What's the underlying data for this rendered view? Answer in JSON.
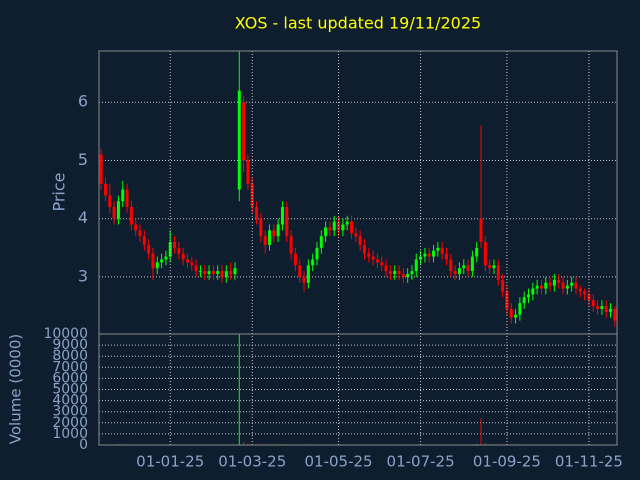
{
  "chart_data": [
    {
      "type": "candlestick",
      "title": "XOS - last updated 19/11/2025",
      "y_label": "Price",
      "ylim": [
        2.02,
        6.88
      ],
      "yticks": [
        3,
        4,
        5,
        6
      ],
      "grid": true,
      "up_color": "#00ff00",
      "down_color": "#ff0000",
      "open": [
        5.1,
        4.6,
        4.4,
        4.2,
        4.0,
        4.3,
        4.5,
        4.2,
        3.9,
        3.8,
        3.7,
        3.55,
        3.4,
        3.15,
        3.25,
        3.3,
        3.35,
        3.6,
        3.5,
        3.4,
        3.3,
        3.25,
        3.2,
        3.1,
        3.1,
        3.05,
        3.1,
        3.05,
        3.1,
        3.0,
        3.1,
        3.05,
        4.5,
        6.0,
        5.0,
        4.6,
        4.2,
        4.0,
        3.7,
        3.55,
        3.8,
        3.7,
        3.9,
        4.2,
        3.7,
        3.4,
        3.2,
        3.0,
        2.9,
        3.2,
        3.3,
        3.5,
        3.7,
        3.85,
        3.8,
        3.95,
        3.8,
        3.9,
        3.95,
        3.75,
        3.7,
        3.55,
        3.4,
        3.35,
        3.3,
        3.25,
        3.2,
        3.1,
        3.05,
        3.1,
        3.05,
        3.0,
        3.05,
        3.1,
        3.3,
        3.35,
        3.4,
        3.35,
        3.45,
        3.5,
        3.4,
        3.3,
        3.1,
        3.05,
        3.15,
        3.2,
        3.1,
        3.35,
        4.0,
        3.6,
        3.2,
        3.15,
        3.2,
        2.95,
        2.75,
        2.45,
        2.3,
        2.35,
        2.55,
        2.65,
        2.7,
        2.8,
        2.85,
        2.8,
        2.9,
        2.85,
        2.95,
        2.9,
        2.8,
        2.85,
        2.9,
        2.8,
        2.75,
        2.7,
        2.6,
        2.5,
        2.45,
        2.5,
        2.4,
        2.45
      ],
      "high": [
        5.2,
        4.7,
        4.6,
        4.3,
        4.4,
        4.65,
        4.6,
        4.3,
        4.0,
        3.9,
        3.8,
        3.65,
        3.5,
        3.35,
        3.4,
        3.45,
        3.8,
        3.7,
        3.6,
        3.5,
        3.4,
        3.35,
        3.3,
        3.2,
        3.2,
        3.2,
        3.2,
        3.2,
        3.2,
        3.2,
        3.25,
        3.25,
        6.87,
        6.1,
        5.1,
        4.7,
        4.3,
        4.1,
        3.8,
        3.9,
        3.9,
        4.0,
        4.3,
        4.3,
        3.8,
        3.5,
        3.3,
        3.1,
        3.3,
        3.4,
        3.6,
        3.8,
        3.95,
        3.95,
        4.05,
        4.05,
        4.0,
        4.05,
        4.05,
        3.85,
        3.8,
        3.65,
        3.5,
        3.45,
        3.4,
        3.35,
        3.3,
        3.2,
        3.2,
        3.2,
        3.15,
        3.15,
        3.2,
        3.4,
        3.45,
        3.5,
        3.5,
        3.55,
        3.6,
        3.6,
        3.5,
        3.4,
        3.2,
        3.25,
        3.3,
        3.3,
        3.45,
        3.6,
        5.6,
        3.7,
        3.3,
        3.3,
        3.3,
        3.05,
        2.85,
        2.55,
        2.45,
        2.65,
        2.75,
        2.8,
        2.9,
        2.95,
        2.95,
        3.0,
        3.0,
        3.05,
        3.05,
        3.0,
        2.95,
        3.0,
        3.0,
        2.85,
        2.8,
        2.8,
        2.7,
        2.6,
        2.6,
        2.6,
        2.55,
        2.5
      ],
      "low": [
        4.5,
        4.3,
        4.1,
        3.9,
        3.9,
        4.2,
        4.1,
        3.8,
        3.7,
        3.6,
        3.45,
        3.3,
        2.95,
        3.05,
        3.15,
        3.2,
        3.25,
        3.4,
        3.3,
        3.2,
        3.15,
        3.1,
        3.0,
        3.0,
        2.95,
        2.95,
        2.95,
        2.95,
        2.9,
        2.9,
        2.95,
        2.95,
        4.3,
        4.8,
        4.5,
        4.1,
        3.9,
        3.6,
        3.4,
        3.45,
        3.6,
        3.6,
        3.8,
        3.6,
        3.3,
        3.1,
        2.9,
        2.75,
        2.8,
        3.1,
        3.2,
        3.4,
        3.6,
        3.7,
        3.7,
        3.7,
        3.7,
        3.8,
        3.65,
        3.6,
        3.45,
        3.3,
        3.25,
        3.2,
        3.15,
        3.1,
        3.0,
        2.95,
        2.95,
        2.95,
        2.9,
        2.9,
        2.95,
        3.0,
        3.2,
        3.25,
        3.25,
        3.25,
        3.35,
        3.3,
        3.2,
        3.0,
        2.95,
        2.95,
        3.05,
        3.0,
        3.0,
        3.25,
        3.5,
        3.1,
        3.05,
        3.05,
        2.85,
        2.65,
        2.35,
        2.2,
        2.2,
        2.25,
        2.45,
        2.55,
        2.6,
        2.7,
        2.7,
        2.7,
        2.75,
        2.75,
        2.8,
        2.7,
        2.7,
        2.75,
        2.7,
        2.65,
        2.6,
        2.5,
        2.4,
        2.35,
        2.35,
        2.3,
        2.3,
        2.15
      ],
      "close": [
        4.6,
        4.4,
        4.2,
        4.0,
        4.3,
        4.5,
        4.2,
        3.9,
        3.8,
        3.7,
        3.55,
        3.4,
        3.15,
        3.25,
        3.3,
        3.35,
        3.6,
        3.5,
        3.4,
        3.3,
        3.25,
        3.2,
        3.1,
        3.1,
        3.05,
        3.1,
        3.05,
        3.1,
        3.0,
        3.1,
        3.05,
        3.15,
        6.2,
        5.0,
        4.6,
        4.2,
        4.0,
        3.7,
        3.55,
        3.8,
        3.7,
        3.9,
        4.2,
        3.7,
        3.4,
        3.2,
        3.0,
        2.9,
        3.2,
        3.3,
        3.5,
        3.7,
        3.85,
        3.8,
        3.95,
        3.8,
        3.9,
        3.95,
        3.75,
        3.7,
        3.55,
        3.4,
        3.35,
        3.3,
        3.25,
        3.2,
        3.1,
        3.05,
        3.1,
        3.05,
        3.0,
        3.05,
        3.1,
        3.3,
        3.35,
        3.4,
        3.35,
        3.45,
        3.5,
        3.4,
        3.3,
        3.1,
        3.05,
        3.15,
        3.2,
        3.1,
        3.35,
        3.5,
        3.6,
        3.2,
        3.15,
        3.2,
        2.95,
        2.75,
        2.45,
        2.3,
        2.35,
        2.55,
        2.65,
        2.7,
        2.8,
        2.85,
        2.8,
        2.9,
        2.85,
        2.95,
        2.9,
        2.8,
        2.85,
        2.9,
        2.8,
        2.75,
        2.7,
        2.6,
        2.5,
        2.45,
        2.5,
        2.4,
        2.45,
        2.25
      ]
    },
    {
      "type": "volume",
      "y_label": "Volume (0000)",
      "ylim": [
        0,
        10000
      ],
      "yticks": [
        0,
        1000,
        2000,
        3000,
        4000,
        5000,
        6000,
        7000,
        8000,
        9000,
        10000
      ],
      "grid": true,
      "categories": [
        null,
        null,
        null,
        null,
        null,
        null,
        null,
        null,
        null,
        null,
        null,
        null,
        null,
        null,
        null,
        null,
        "01-01-25",
        null,
        null,
        null,
        null,
        null,
        null,
        null,
        null,
        null,
        null,
        null,
        null,
        null,
        null,
        null,
        null,
        null,
        null,
        "01-03-25",
        null,
        null,
        null,
        null,
        null,
        null,
        null,
        null,
        null,
        null,
        null,
        null,
        null,
        null,
        null,
        null,
        null,
        null,
        null,
        "01-05-25",
        null,
        null,
        null,
        null,
        null,
        null,
        null,
        null,
        null,
        null,
        null,
        null,
        null,
        null,
        null,
        null,
        null,
        null,
        "01-07-25",
        null,
        null,
        null,
        null,
        null,
        null,
        null,
        null,
        null,
        null,
        null,
        null,
        null,
        null,
        null,
        null,
        null,
        null,
        null,
        "01-09-25",
        null,
        null,
        null,
        null,
        null,
        null,
        null,
        null,
        null,
        null,
        null,
        null,
        null,
        null,
        null,
        null,
        null,
        null,
        "01-11-25",
        null,
        null,
        null,
        null,
        null,
        null
      ],
      "values": [
        60,
        50,
        40,
        45,
        70,
        55,
        40,
        35,
        40,
        30,
        35,
        30,
        45,
        40,
        30,
        35,
        60,
        40,
        30,
        30,
        25,
        30,
        25,
        20,
        25,
        20,
        25,
        20,
        25,
        30,
        25,
        30,
        12000,
        300,
        150,
        90,
        70,
        60,
        50,
        60,
        50,
        60,
        70,
        60,
        50,
        45,
        50,
        60,
        50,
        45,
        40,
        45,
        50,
        40,
        35,
        40,
        35,
        30,
        35,
        30,
        30,
        25,
        25,
        20,
        25,
        20,
        25,
        20,
        20,
        25,
        20,
        25,
        30,
        40,
        35,
        30,
        35,
        40,
        35,
        30,
        30,
        25,
        25,
        30,
        30,
        25,
        50,
        80,
        2400,
        200,
        90,
        60,
        50,
        60,
        80,
        70,
        50,
        45,
        40,
        35,
        30,
        35,
        30,
        35,
        30,
        30,
        25,
        30,
        25,
        25,
        25,
        30,
        25,
        30,
        35,
        30,
        25,
        30,
        30,
        40
      ]
    }
  ]
}
